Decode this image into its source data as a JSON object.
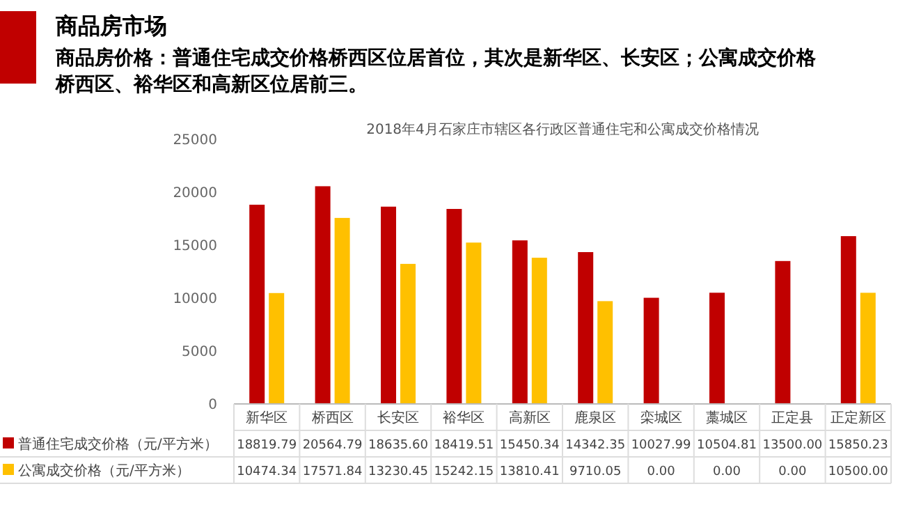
{
  "chart_data": {
    "type": "bar",
    "title": "2018年4月石家庄市辖区各行政区普通住宅和公寓成交价格情况",
    "annotations": [
      "商品房市场",
      "商品房价格：普通住宅成交价格桥西区位居首位，其次是新华区、长安区；公寓成交价格桥西区、裕华区和高新区位居前三。"
    ],
    "categories": [
      "新华区",
      "桥西区",
      "长安区",
      "裕华区",
      "高新区",
      "鹿泉区",
      "栾城区",
      "藁城区",
      "正定县",
      "正定新区"
    ],
    "series": [
      {
        "name": "普通住宅成交价格（元/平方米）",
        "color": "#c00000",
        "values": [
          18819.79,
          20564.79,
          18635.6,
          18419.51,
          15450.34,
          14342.35,
          10027.99,
          10504.81,
          13500,
          15850.23
        ],
        "value_labels": [
          "18819.79",
          "20564.79",
          "18635.60",
          "18419.51",
          "15450.34",
          "14342.35",
          "10027.99",
          "10504.81",
          "13500.00",
          "15850.23"
        ]
      },
      {
        "name": "公寓成交价格（元/平方米）",
        "color": "#ffc000",
        "values": [
          10474.34,
          17571.84,
          13230.45,
          15242.15,
          13810.41,
          9710.05,
          0,
          0,
          0,
          10500
        ],
        "value_labels": [
          "10474.34",
          "17571.84",
          "13230.45",
          "15242.15",
          "13810.41",
          "9710.05",
          "0.00",
          "0.00",
          "0.00",
          "10500.00"
        ]
      }
    ],
    "ylim": [
      0,
      25000
    ],
    "yticks": [
      0,
      5000,
      10000,
      15000,
      20000,
      25000
    ],
    "grid": false,
    "legend": "bottom"
  }
}
